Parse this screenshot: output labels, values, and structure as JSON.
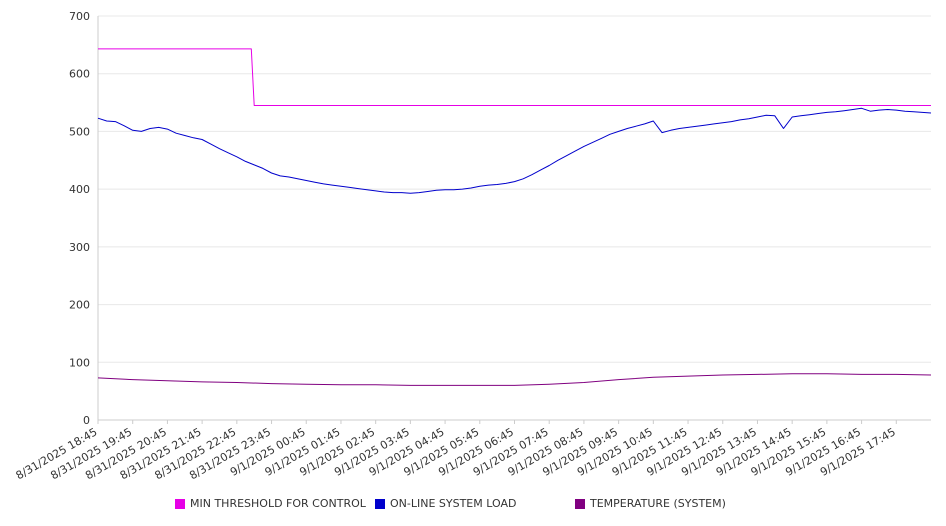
{
  "chart_data": {
    "type": "line",
    "title": "",
    "xlabel": "",
    "ylabel": "",
    "ylim": [
      0,
      700
    ],
    "yticks": [
      0,
      100,
      200,
      300,
      400,
      500,
      600,
      700
    ],
    "grid": true,
    "legend_position": "bottom",
    "xtick_labels": [
      "8/31/2025 18:45",
      "8/31/2025 19:45",
      "8/31/2025 20:45",
      "8/31/2025 21:45",
      "8/31/2025 22:45",
      "8/31/2025 23:45",
      "9/1/2025 00:45",
      "9/1/2025 01:45",
      "9/1/2025 02:45",
      "9/1/2025 03:45",
      "9/1/2025 04:45",
      "9/1/2025 05:45",
      "9/1/2025 06:45",
      "9/1/2025 07:45",
      "9/1/2025 08:45",
      "9/1/2025 09:45",
      "9/1/2025 10:45",
      "9/1/2025 11:45",
      "9/1/2025 12:45",
      "9/1/2025 13:45",
      "9/1/2025 14:45",
      "9/1/2025 15:45",
      "9/1/2025 16:45",
      "9/1/2025 17:45"
    ],
    "x_range": [
      "8/31/2025 18:45",
      "9/1/2025 18:45"
    ],
    "series": [
      {
        "name": "MIN THRESHOLD FOR CONTROL",
        "color": "#e600e6",
        "points": [
          [
            "8/31/2025 18:45",
            643
          ],
          [
            "8/31/2025 23:10",
            643
          ],
          [
            "8/31/2025 23:15",
            545
          ],
          [
            "9/1/2025 18:45",
            545
          ]
        ]
      },
      {
        "name": "ON-LINE SYSTEM LOAD",
        "color": "#0000cc",
        "points": [
          [
            "8/31/2025 18:45",
            523
          ],
          [
            "8/31/2025 19:00",
            518
          ],
          [
            "8/31/2025 19:15",
            517
          ],
          [
            "8/31/2025 19:30",
            510
          ],
          [
            "8/31/2025 19:45",
            502
          ],
          [
            "8/31/2025 20:00",
            500
          ],
          [
            "8/31/2025 20:15",
            505
          ],
          [
            "8/31/2025 20:30",
            507
          ],
          [
            "8/31/2025 20:45",
            504
          ],
          [
            "8/31/2025 21:00",
            497
          ],
          [
            "8/31/2025 21:15",
            493
          ],
          [
            "8/31/2025 21:30",
            489
          ],
          [
            "8/31/2025 21:45",
            486
          ],
          [
            "8/31/2025 22:00",
            478
          ],
          [
            "8/31/2025 22:15",
            470
          ],
          [
            "8/31/2025 22:30",
            463
          ],
          [
            "8/31/2025 22:45",
            456
          ],
          [
            "8/31/2025 23:00",
            448
          ],
          [
            "8/31/2025 23:15",
            442
          ],
          [
            "8/31/2025 23:30",
            436
          ],
          [
            "8/31/2025 23:45",
            428
          ],
          [
            "9/1/2025 00:00",
            423
          ],
          [
            "9/1/2025 00:15",
            421
          ],
          [
            "9/1/2025 00:30",
            418
          ],
          [
            "9/1/2025 00:45",
            415
          ],
          [
            "9/1/2025 01:00",
            412
          ],
          [
            "9/1/2025 01:15",
            409
          ],
          [
            "9/1/2025 01:30",
            407
          ],
          [
            "9/1/2025 01:45",
            405
          ],
          [
            "9/1/2025 02:00",
            403
          ],
          [
            "9/1/2025 02:15",
            401
          ],
          [
            "9/1/2025 02:30",
            399
          ],
          [
            "9/1/2025 02:45",
            397
          ],
          [
            "9/1/2025 03:00",
            395
          ],
          [
            "9/1/2025 03:15",
            394
          ],
          [
            "9/1/2025 03:30",
            394
          ],
          [
            "9/1/2025 03:45",
            393
          ],
          [
            "9/1/2025 04:00",
            394
          ],
          [
            "9/1/2025 04:15",
            396
          ],
          [
            "9/1/2025 04:30",
            398
          ],
          [
            "9/1/2025 04:45",
            399
          ],
          [
            "9/1/2025 05:00",
            399
          ],
          [
            "9/1/2025 05:15",
            400
          ],
          [
            "9/1/2025 05:30",
            402
          ],
          [
            "9/1/2025 05:45",
            405
          ],
          [
            "9/1/2025 06:00",
            407
          ],
          [
            "9/1/2025 06:15",
            408
          ],
          [
            "9/1/2025 06:30",
            410
          ],
          [
            "9/1/2025 06:45",
            413
          ],
          [
            "9/1/2025 07:00",
            418
          ],
          [
            "9/1/2025 07:15",
            425
          ],
          [
            "9/1/2025 07:30",
            433
          ],
          [
            "9/1/2025 07:45",
            441
          ],
          [
            "9/1/2025 08:00",
            450
          ],
          [
            "9/1/2025 08:15",
            458
          ],
          [
            "9/1/2025 08:30",
            466
          ],
          [
            "9/1/2025 08:45",
            474
          ],
          [
            "9/1/2025 09:00",
            481
          ],
          [
            "9/1/2025 09:15",
            488
          ],
          [
            "9/1/2025 09:30",
            495
          ],
          [
            "9/1/2025 09:45",
            500
          ],
          [
            "9/1/2025 10:00",
            505
          ],
          [
            "9/1/2025 10:15",
            509
          ],
          [
            "9/1/2025 10:30",
            513
          ],
          [
            "9/1/2025 10:45",
            518
          ],
          [
            "9/1/2025 11:00",
            498
          ],
          [
            "9/1/2025 11:15",
            502
          ],
          [
            "9/1/2025 11:30",
            505
          ],
          [
            "9/1/2025 11:45",
            507
          ],
          [
            "9/1/2025 12:00",
            509
          ],
          [
            "9/1/2025 12:15",
            511
          ],
          [
            "9/1/2025 12:30",
            513
          ],
          [
            "9/1/2025 12:45",
            515
          ],
          [
            "9/1/2025 13:00",
            517
          ],
          [
            "9/1/2025 13:15",
            520
          ],
          [
            "9/1/2025 13:30",
            522
          ],
          [
            "9/1/2025 13:45",
            525
          ],
          [
            "9/1/2025 14:00",
            528
          ],
          [
            "9/1/2025 14:15",
            527
          ],
          [
            "9/1/2025 14:30",
            505
          ],
          [
            "9/1/2025 14:45",
            525
          ],
          [
            "9/1/2025 15:00",
            527
          ],
          [
            "9/1/2025 15:15",
            529
          ],
          [
            "9/1/2025 15:30",
            531
          ],
          [
            "9/1/2025 15:45",
            533
          ],
          [
            "9/1/2025 16:00",
            534
          ],
          [
            "9/1/2025 16:15",
            536
          ],
          [
            "9/1/2025 16:30",
            538
          ],
          [
            "9/1/2025 16:45",
            540
          ],
          [
            "9/1/2025 17:00",
            535
          ],
          [
            "9/1/2025 17:15",
            537
          ],
          [
            "9/1/2025 17:30",
            538
          ],
          [
            "9/1/2025 17:45",
            537
          ],
          [
            "9/1/2025 18:00",
            535
          ],
          [
            "9/1/2025 18:15",
            534
          ],
          [
            "9/1/2025 18:45",
            532
          ]
        ]
      },
      {
        "name": "TEMPERATURE (SYSTEM)",
        "color": "#800080",
        "points": [
          [
            "8/31/2025 18:45",
            73
          ],
          [
            "8/31/2025 19:45",
            70
          ],
          [
            "8/31/2025 20:45",
            68
          ],
          [
            "8/31/2025 21:45",
            66
          ],
          [
            "8/31/2025 22:45",
            65
          ],
          [
            "8/31/2025 23:45",
            63
          ],
          [
            "9/1/2025 00:45",
            62
          ],
          [
            "9/1/2025 01:45",
            61
          ],
          [
            "9/1/2025 02:45",
            61
          ],
          [
            "9/1/2025 03:45",
            60
          ],
          [
            "9/1/2025 04:45",
            60
          ],
          [
            "9/1/2025 05:45",
            60
          ],
          [
            "9/1/2025 06:45",
            60
          ],
          [
            "9/1/2025 07:45",
            62
          ],
          [
            "9/1/2025 08:45",
            65
          ],
          [
            "9/1/2025 09:45",
            70
          ],
          [
            "9/1/2025 10:45",
            74
          ],
          [
            "9/1/2025 11:45",
            76
          ],
          [
            "9/1/2025 12:45",
            78
          ],
          [
            "9/1/2025 13:45",
            79
          ],
          [
            "9/1/2025 14:45",
            80
          ],
          [
            "9/1/2025 15:45",
            80
          ],
          [
            "9/1/2025 16:45",
            79
          ],
          [
            "9/1/2025 17:45",
            79
          ],
          [
            "9/1/2025 18:45",
            78
          ]
        ]
      }
    ]
  }
}
